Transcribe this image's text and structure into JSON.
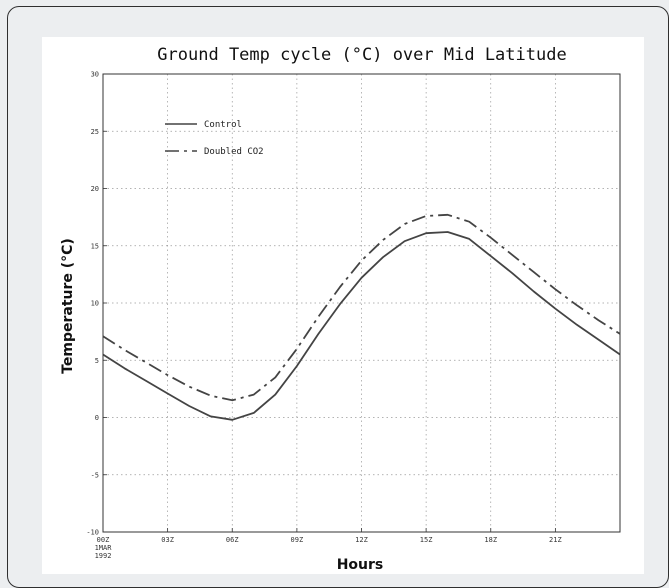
{
  "chart_data": {
    "type": "line",
    "title": "Ground Temp cycle (°C) over Mid Latitude",
    "xlabel": "Hours",
    "ylabel": "Temperature (°C)",
    "ylim": [
      -10,
      30
    ],
    "yticks": [
      -10,
      -5,
      0,
      5,
      10,
      15,
      20,
      25,
      30
    ],
    "xlim": [
      0,
      24
    ],
    "xticks": [
      {
        "x": 0,
        "label": "00Z",
        "sub": [
          "1MAR",
          "1992"
        ]
      },
      {
        "x": 3,
        "label": "03Z"
      },
      {
        "x": 6,
        "label": "06Z"
      },
      {
        "x": 9,
        "label": "09Z"
      },
      {
        "x": 12,
        "label": "12Z"
      },
      {
        "x": 15,
        "label": "15Z"
      },
      {
        "x": 18,
        "label": "18Z"
      },
      {
        "x": 21,
        "label": "21Z"
      }
    ],
    "grid": true,
    "legend_position": "top-left",
    "series": [
      {
        "name": "Control",
        "style": "solid",
        "color": "#444444",
        "x": [
          0,
          1,
          2,
          3,
          4,
          5,
          6,
          7,
          8,
          9,
          10,
          11,
          12,
          13,
          14,
          15,
          16,
          17,
          18,
          19,
          20,
          21,
          22,
          23,
          24
        ],
        "y": [
          5.5,
          4.3,
          3.2,
          2.1,
          1.0,
          0.1,
          -0.2,
          0.4,
          2.0,
          4.5,
          7.3,
          9.9,
          12.2,
          14.0,
          15.4,
          16.1,
          16.2,
          15.6,
          14.1,
          12.6,
          11.0,
          9.5,
          8.1,
          6.8,
          5.5
        ]
      },
      {
        "name": "Doubled CO2",
        "style": "dash-dot",
        "color": "#444444",
        "x": [
          0,
          1,
          2,
          3,
          4,
          5,
          6,
          7,
          8,
          9,
          10,
          11,
          12,
          13,
          14,
          15,
          16,
          17,
          18,
          19,
          20,
          21,
          22,
          23,
          24
        ],
        "y": [
          7.1,
          5.9,
          4.8,
          3.7,
          2.7,
          1.9,
          1.5,
          2.0,
          3.5,
          6.0,
          8.8,
          11.4,
          13.7,
          15.5,
          16.9,
          17.6,
          17.7,
          17.1,
          15.7,
          14.2,
          12.7,
          11.2,
          9.8,
          8.5,
          7.3
        ]
      }
    ]
  }
}
